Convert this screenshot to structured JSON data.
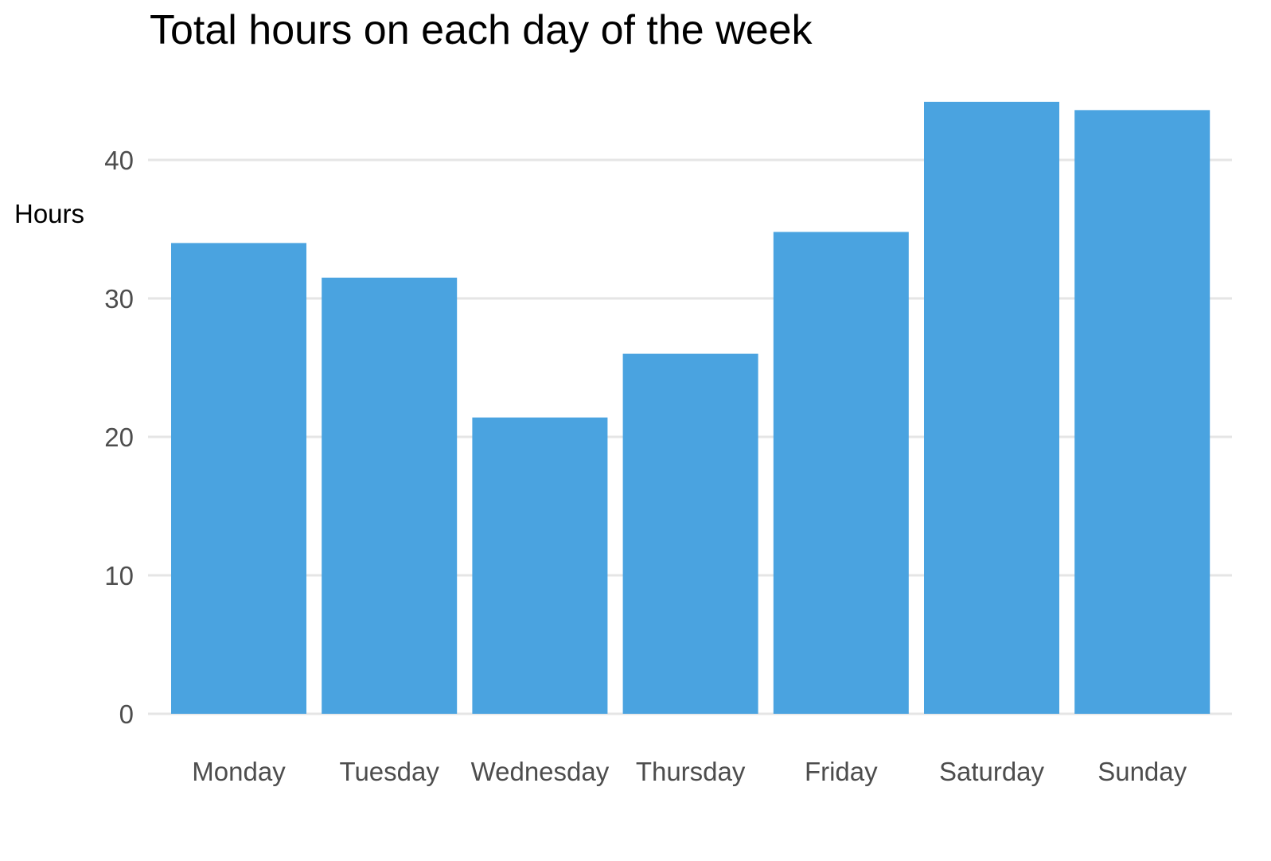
{
  "chart_data": {
    "type": "bar",
    "title": "Total hours on each day of the week",
    "xlabel": "",
    "ylabel": "Hours",
    "categories": [
      "Monday",
      "Tuesday",
      "Wednesday",
      "Thursday",
      "Friday",
      "Saturday",
      "Sunday"
    ],
    "values": [
      34.0,
      31.5,
      21.4,
      26.0,
      34.8,
      44.2,
      43.6
    ],
    "ylim": [
      0,
      45.4
    ],
    "yticks": [
      "0",
      "10",
      "20",
      "30",
      "40"
    ],
    "grid": "horizontal",
    "bar_color": "#4AA3E0",
    "grid_color": "#E5E5E5"
  }
}
